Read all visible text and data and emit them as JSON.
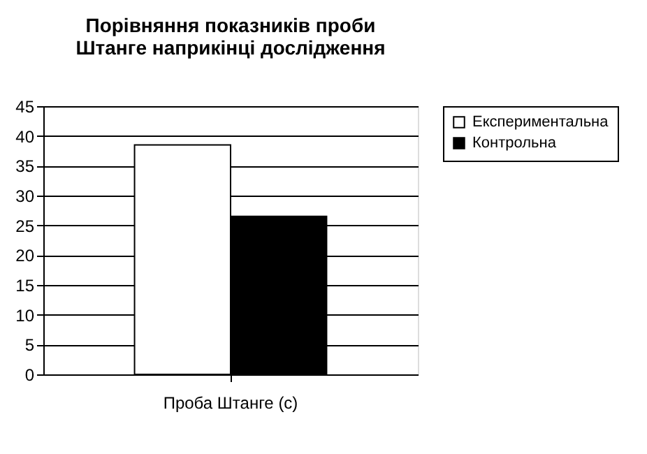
{
  "chart_data": {
    "type": "bar",
    "title": "Порівняння показників проби Штанге наприкінці дослідження",
    "categories": [
      "Проба Штанге (с)"
    ],
    "series": [
      {
        "name": "Експериментальна",
        "color": "#ffffff",
        "values": [
          38.5
        ]
      },
      {
        "name": "Контрольна",
        "color": "#000000",
        "values": [
          26.5
        ]
      }
    ],
    "ylim": [
      0,
      45
    ],
    "yticks": [
      0,
      5,
      10,
      15,
      20,
      25,
      30,
      35,
      40,
      45
    ],
    "grid": "y",
    "legend": "right"
  }
}
